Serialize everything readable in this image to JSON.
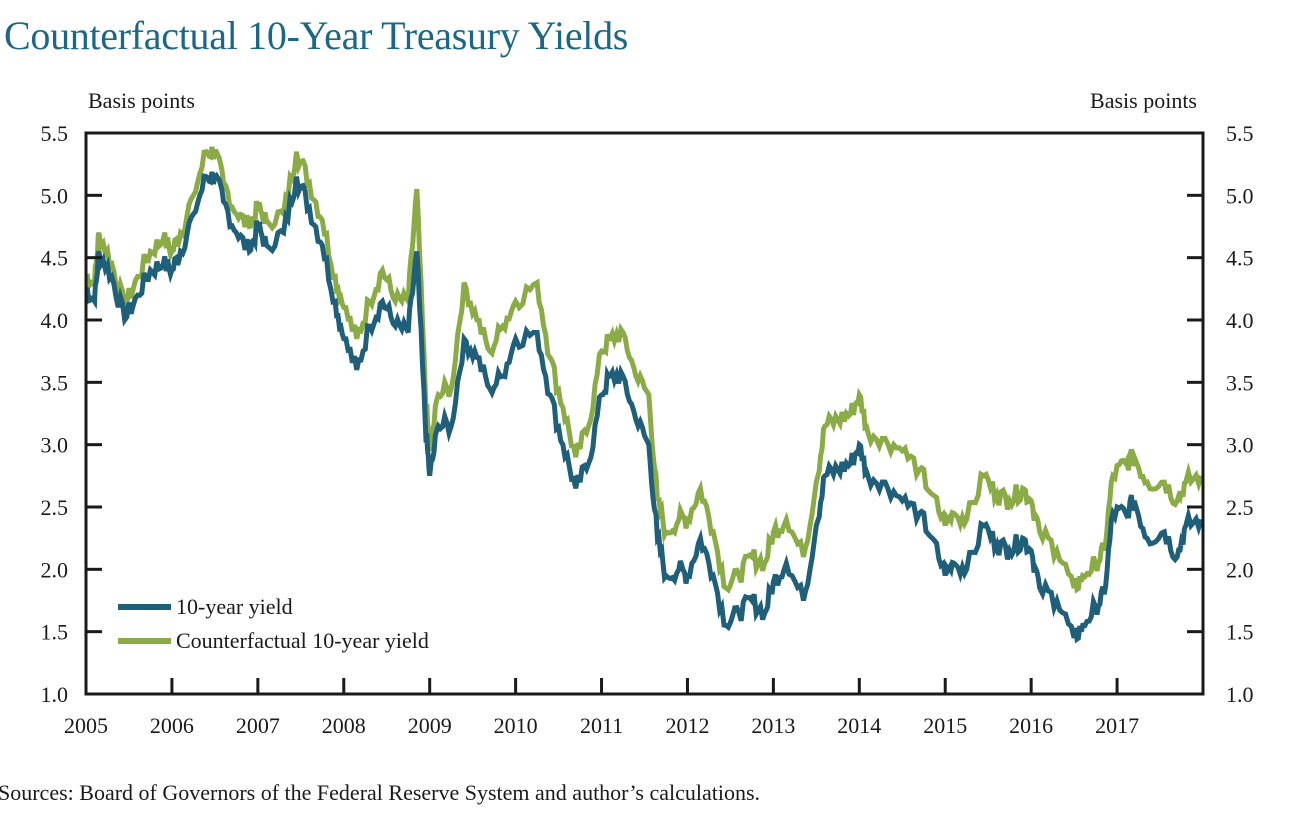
{
  "title": "Counterfactual 10-Year Treasury Yields",
  "source": "Sources: Board of Governors of the Federal Reserve System and author’s calculations.",
  "colors": {
    "title": "#1c6787",
    "yield": "#1f5f7a",
    "counterfactual": "#8aab45",
    "axis": "#1a1a1a"
  },
  "chart_data": {
    "type": "line",
    "title": "Counterfactual 10-Year Treasury Yields",
    "ylabel_left": "Basis points",
    "ylabel_right": "Basis points",
    "xlabel": "",
    "xlim": [
      2005,
      2018
    ],
    "ylim": [
      1.0,
      5.5
    ],
    "yticks": [
      "1.0",
      "1.5",
      "2.0",
      "2.5",
      "3.0",
      "3.5",
      "4.0",
      "4.5",
      "5.0",
      "5.5"
    ],
    "ytick_values": [
      1.0,
      1.5,
      2.0,
      2.5,
      3.0,
      3.5,
      4.0,
      4.5,
      5.0,
      5.5
    ],
    "xticks": [
      "2005",
      "2006",
      "2007",
      "2008",
      "2009",
      "2010",
      "2011",
      "2012",
      "2013",
      "2014",
      "2015",
      "2016",
      "2017"
    ],
    "xtick_values": [
      2005,
      2006,
      2007,
      2008,
      2009,
      2010,
      2011,
      2012,
      2013,
      2014,
      2015,
      2016,
      2017
    ],
    "grid": false,
    "legend": "bottom-left",
    "x": [
      2005.0,
      2005.1,
      2005.15,
      2005.3,
      2005.45,
      2005.6,
      2005.75,
      2005.9,
      2006.0,
      2006.1,
      2006.25,
      2006.4,
      2006.5,
      2006.6,
      2006.75,
      2006.9,
      2007.0,
      2007.1,
      2007.3,
      2007.45,
      2007.6,
      2007.75,
      2007.9,
      2008.0,
      2008.15,
      2008.3,
      2008.45,
      2008.6,
      2008.75,
      2008.85,
      2008.95,
      2009.0,
      2009.1,
      2009.25,
      2009.4,
      2009.55,
      2009.7,
      2009.85,
      2010.0,
      2010.25,
      2010.4,
      2010.55,
      2010.7,
      2010.85,
      2011.0,
      2011.1,
      2011.25,
      2011.4,
      2011.55,
      2011.65,
      2011.75,
      2011.9,
      2012.0,
      2012.15,
      2012.3,
      2012.45,
      2012.6,
      2012.75,
      2012.9,
      2013.0,
      2013.15,
      2013.35,
      2013.5,
      2013.6,
      2013.75,
      2013.9,
      2014.0,
      2014.1,
      2014.3,
      2014.5,
      2014.7,
      2014.85,
      2015.0,
      2015.1,
      2015.25,
      2015.45,
      2015.6,
      2015.75,
      2015.9,
      2016.0,
      2016.1,
      2016.3,
      2016.5,
      2016.6,
      2016.75,
      2016.85,
      2016.95,
      2017.1,
      2017.2,
      2017.35,
      2017.55,
      2017.7,
      2017.8,
      2017.98
    ],
    "series": [
      {
        "name": "10-year yield",
        "color": "#1f5f7a",
        "values": [
          4.25,
          4.15,
          4.55,
          4.35,
          4.0,
          4.2,
          4.4,
          4.45,
          4.4,
          4.55,
          4.85,
          5.15,
          5.15,
          4.95,
          4.7,
          4.55,
          4.75,
          4.6,
          4.7,
          5.15,
          4.9,
          4.6,
          4.15,
          3.85,
          3.6,
          3.95,
          4.15,
          3.95,
          3.9,
          4.55,
          3.15,
          2.75,
          3.15,
          3.15,
          3.85,
          3.7,
          3.45,
          3.55,
          3.85,
          3.9,
          3.4,
          3.0,
          2.65,
          2.85,
          3.4,
          3.55,
          3.55,
          3.2,
          3.0,
          2.25,
          1.95,
          2.0,
          1.95,
          2.25,
          1.95,
          1.55,
          1.65,
          1.75,
          1.65,
          1.9,
          2.05,
          1.75,
          2.35,
          2.75,
          2.8,
          2.85,
          3.0,
          2.75,
          2.7,
          2.55,
          2.45,
          2.25,
          1.95,
          2.05,
          2.0,
          2.35,
          2.2,
          2.15,
          2.25,
          2.15,
          1.85,
          1.75,
          1.45,
          1.55,
          1.7,
          1.8,
          2.45,
          2.45,
          2.55,
          2.25,
          2.3,
          2.1,
          2.35,
          2.4
        ]
      },
      {
        "name": "Counterfactual 10-year yield",
        "color": "#8aab45",
        "values": [
          4.35,
          4.3,
          4.7,
          4.45,
          4.1,
          4.35,
          4.55,
          4.65,
          4.55,
          4.7,
          5.0,
          5.35,
          5.35,
          5.1,
          4.85,
          4.75,
          4.9,
          4.8,
          4.85,
          5.35,
          5.1,
          4.8,
          4.35,
          4.1,
          3.85,
          4.15,
          4.4,
          4.15,
          4.15,
          5.05,
          3.4,
          2.95,
          3.4,
          3.45,
          4.3,
          4.0,
          3.75,
          3.95,
          4.15,
          4.3,
          3.7,
          3.3,
          2.9,
          3.15,
          3.75,
          3.85,
          3.9,
          3.55,
          3.4,
          2.55,
          2.3,
          2.4,
          2.4,
          2.65,
          2.3,
          1.85,
          1.95,
          2.1,
          2.05,
          2.3,
          2.4,
          2.1,
          2.7,
          3.15,
          3.2,
          3.25,
          3.4,
          3.1,
          3.05,
          2.95,
          2.8,
          2.6,
          2.35,
          2.45,
          2.4,
          2.75,
          2.6,
          2.55,
          2.65,
          2.55,
          2.3,
          2.15,
          1.85,
          1.95,
          2.05,
          2.15,
          2.75,
          2.85,
          2.9,
          2.7,
          2.7,
          2.55,
          2.7,
          2.75
        ]
      }
    ]
  }
}
